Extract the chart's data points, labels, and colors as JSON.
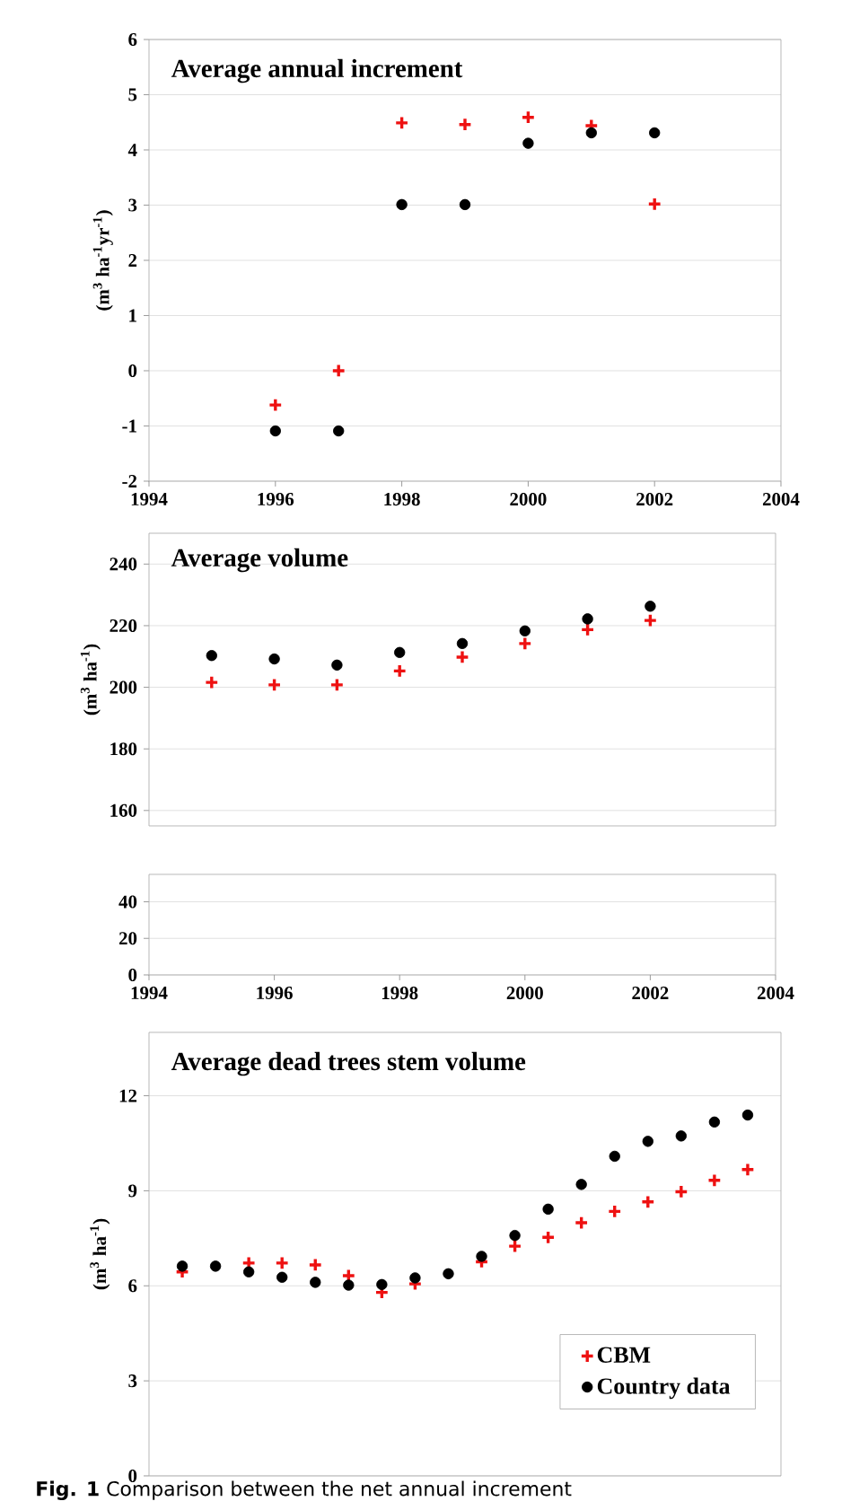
{
  "chart_data": [
    {
      "type": "scatter",
      "title": "Average annual increment",
      "ylabel": "(m$^{3}$ ha$^{-1}$yr$^{-1}$)",
      "x": [
        1996,
        1997,
        1998,
        1999,
        2000,
        2001,
        2002
      ],
      "xlim": [
        1994,
        2004
      ],
      "xticks": [
        1994,
        1996,
        1998,
        2000,
        2002,
        2004
      ],
      "ylim": [
        -2,
        6
      ],
      "yticks": [
        -2,
        -1,
        0,
        1,
        2,
        3,
        4,
        5,
        6
      ],
      "grid": "y",
      "series": [
        {
          "color": "#ee1111",
          "marker": "cross",
          "values": [
            -0.62,
            0,
            4.49,
            4.46,
            4.59,
            4.44,
            3.02
          ]
        },
        {
          "color": "#000000",
          "marker": "circle",
          "values": [
            -1.09,
            -1.09,
            3.01,
            3.01,
            4.12,
            4.31,
            4.31
          ]
        }
      ]
    },
    {
      "type": "scatter",
      "title": "Average volume",
      "ylabel": "(m$^{3}$ ha$^{-1}$)",
      "x": [
        1995,
        1996,
        1997,
        1998,
        1999,
        2000,
        2001,
        2002
      ],
      "xlim": [
        1994,
        2004
      ],
      "ylim": [
        155,
        250
      ],
      "yticks": [
        160,
        180,
        200,
        220,
        240
      ],
      "grid": "y",
      "tick_labels": "y",
      "series": [
        {
          "color": "#ee1111",
          "marker": "cross",
          "values": [
            201.6,
            200.8,
            200.8,
            205.3,
            209.8,
            214.2,
            218.7,
            221.7
          ]
        },
        {
          "color": "#000000",
          "marker": "circle",
          "values": [
            210.3,
            209.2,
            207.2,
            211.3,
            214.2,
            218.3,
            222.2,
            226.3
          ]
        }
      ]
    },
    {
      "type": "scatter",
      "xlim": [
        1994,
        2004
      ],
      "xticks": [
        1994,
        1996,
        1998,
        2000,
        2002,
        2004
      ],
      "ylim": [
        0,
        55
      ],
      "yticks": [
        0,
        20,
        40
      ],
      "grid": "y"
    },
    {
      "type": "scatter",
      "title": "Average dead trees stem volume",
      "ylabel": "(m$^{3}$ ha$^{-1}$)",
      "categories": [
        null,
        null,
        null,
        null,
        null,
        null,
        null,
        null,
        null,
        null,
        null,
        null,
        null,
        null,
        null,
        null,
        null,
        null
      ],
      "ylim": [
        0,
        14
      ],
      "yticks": [
        0,
        3,
        6,
        9,
        12
      ],
      "grid": "y",
      "tick_labels": "y",
      "legend": "bottom right",
      "annotations": [
        "**Fig. 1** Comparison between the net annual increment"
      ],
      "series": [
        {
          "name": "CBM",
          "color": "#ee1111",
          "marker": "cross",
          "values": [
            6.44,
            null,
            6.72,
            6.72,
            6.66,
            6.32,
            5.79,
            6.06,
            null,
            6.76,
            7.25,
            7.53,
            7.99,
            8.35,
            8.65,
            8.97,
            9.33,
            9.67
          ]
        },
        {
          "name": "Country data",
          "color": "#000000",
          "marker": "circle",
          "values": [
            6.62,
            6.62,
            6.44,
            6.27,
            6.11,
            6.02,
            6.04,
            6.25,
            6.38,
            6.93,
            7.59,
            8.42,
            9.2,
            10.09,
            10.56,
            10.73,
            11.17,
            11.39
          ]
        }
      ]
    }
  ]
}
